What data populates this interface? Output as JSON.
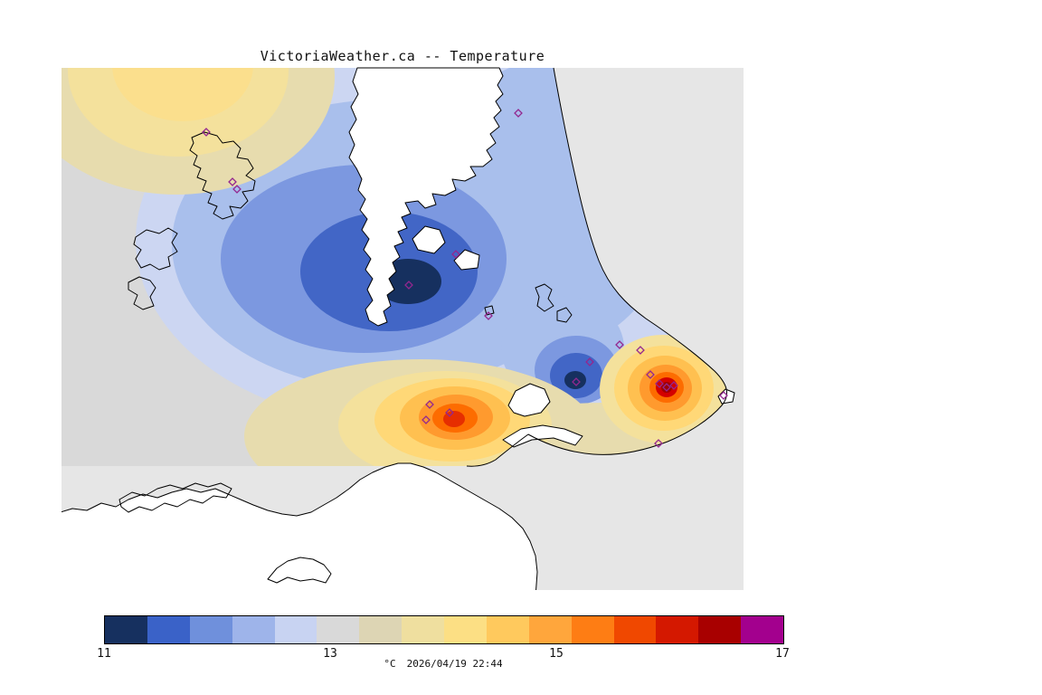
{
  "title": "VictoriaWeather.ca -- Temperature",
  "caption": {
    "unit": "°C",
    "timestamp": "2026/04/19 22:44"
  },
  "colorbar": {
    "min": 11,
    "max": 17,
    "unit": "°C",
    "ticks": [
      "11",
      "13",
      "15",
      "17"
    ],
    "segments": [
      "#16305f",
      "#3a62c8",
      "#6f90dc",
      "#9eb4ea",
      "#c8d3f2",
      "#d9d9d9",
      "#ddd5b4",
      "#efdf9f",
      "#fcdf84",
      "#ffc95d",
      "#ffa63c",
      "#fe7d14",
      "#f04800",
      "#d41800",
      "#a80000",
      "#a3008e"
    ]
  },
  "map": {
    "background_color": "#e6e6e6",
    "field_base_color": "#d9d9d9",
    "marker_color": "#93278f",
    "stations": [
      [
        228,
        146
      ],
      [
        257,
        201
      ],
      [
        262,
        209
      ],
      [
        573,
        125
      ],
      [
        504,
        281
      ],
      [
        452,
        315
      ],
      [
        540,
        349
      ],
      [
        652,
        400
      ],
      [
        685,
        381
      ],
      [
        708,
        387
      ],
      [
        637,
        422
      ],
      [
        719,
        414
      ],
      [
        729,
        424
      ],
      [
        737,
        428
      ],
      [
        745,
        426
      ],
      [
        475,
        447
      ],
      [
        471,
        464
      ],
      [
        497,
        456
      ],
      [
        728,
        490
      ],
      [
        800,
        437
      ]
    ]
  }
}
